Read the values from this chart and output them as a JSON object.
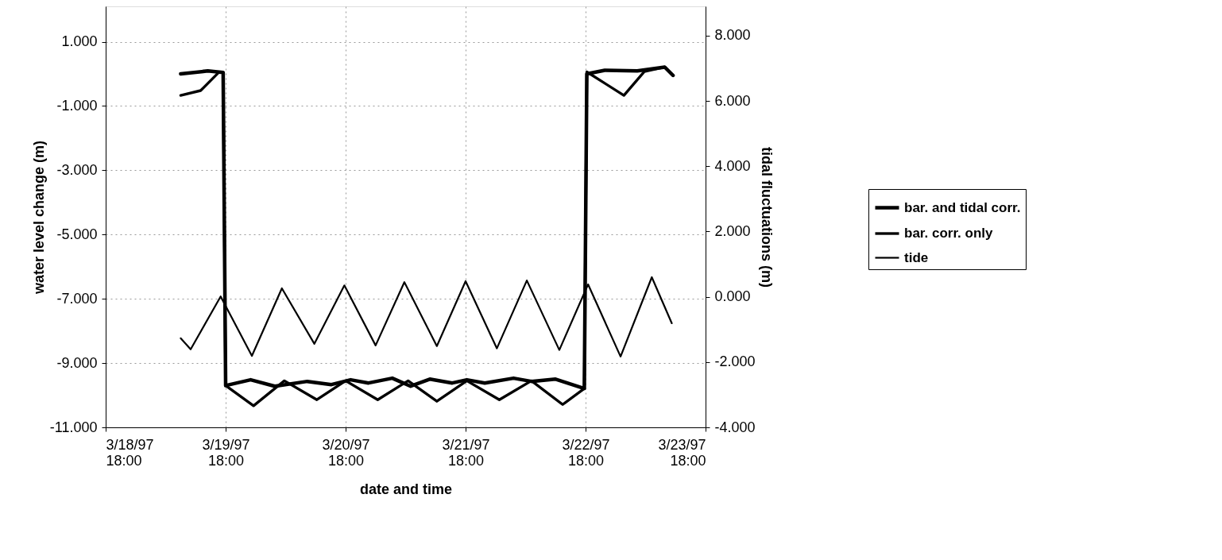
{
  "chart_data": {
    "type": "line",
    "xlabel": "date and time",
    "ylabel": "water level change (m)",
    "y2label": "tidal fluctuations (m)",
    "xlim": [
      "1997-03-18T18:00",
      "1997-03-23T18:00"
    ],
    "xticks": [
      {
        "value": "1997-03-18T18:00",
        "label": "3/18/97 18:00"
      },
      {
        "value": "1997-03-19T18:00",
        "label": "3/19/97 18:00"
      },
      {
        "value": "1997-03-20T18:00",
        "label": "3/20/97 18:00"
      },
      {
        "value": "1997-03-21T18:00",
        "label": "3/21/97 18:00"
      },
      {
        "value": "1997-03-22T18:00",
        "label": "3/22/97 18:00"
      },
      {
        "value": "1997-03-23T18:00",
        "label": "3/23/97 18:00"
      }
    ],
    "ylim": [
      -11,
      2.1
    ],
    "yticks": [
      {
        "value": -11,
        "label": "-11.000"
      },
      {
        "value": -9,
        "label": "-9.000"
      },
      {
        "value": -7,
        "label": "-7.000"
      },
      {
        "value": -5,
        "label": "-5.000"
      },
      {
        "value": -3,
        "label": "-3.000"
      },
      {
        "value": -1,
        "label": "-1.000"
      },
      {
        "value": 1,
        "label": "1.000"
      }
    ],
    "y2lim": [
      -4,
      8.9
    ],
    "y2ticks": [
      {
        "value": -4,
        "label": "-4.000"
      },
      {
        "value": -2,
        "label": "-2.000"
      },
      {
        "value": 0,
        "label": "0.000"
      },
      {
        "value": 2,
        "label": "2.000"
      },
      {
        "value": 4,
        "label": "4.000"
      },
      {
        "value": 6,
        "label": "6.000"
      },
      {
        "value": 8,
        "label": "8.000"
      }
    ],
    "grid": true,
    "legend": "right",
    "marker": "none",
    "line_style": "solid",
    "series": [
      {
        "name": "bar. and tidal corr.",
        "color": "#000000",
        "x": [
          "1997-03-19T09:00",
          "1997-03-19T14:25",
          "1997-03-19T17:30",
          "1997-03-19T18:00",
          "1997-03-19T23:00",
          "1997-03-20T03:50",
          "1997-03-20T10:20",
          "1997-03-20T15:10",
          "1997-03-20T19:00",
          "1997-03-20T22:35",
          "1997-03-21T03:20",
          "1997-03-21T07:00",
          "1997-03-21T10:50",
          "1997-03-21T15:20",
          "1997-03-21T18:15",
          "1997-03-21T21:50",
          "1997-03-22T03:35",
          "1997-03-22T07:10",
          "1997-03-22T12:00",
          "1997-03-22T17:45",
          "1997-03-22T18:15",
          "1997-03-22T21:50",
          "1997-03-23T04:20",
          "1997-03-23T09:50",
          "1997-03-23T11:30"
        ],
        "values": [
          0.0,
          0.09,
          0.04,
          -9.7,
          -9.52,
          -9.72,
          -9.57,
          -9.67,
          -9.52,
          -9.62,
          -9.47,
          -9.72,
          -9.5,
          -9.62,
          -9.52,
          -9.62,
          -9.47,
          -9.57,
          -9.5,
          -9.79,
          0.0,
          0.11,
          0.09,
          0.21,
          -0.05
        ]
      },
      {
        "name": "bar. corr. only",
        "color": "#000000",
        "x": [
          "1997-03-19T09:00",
          "1997-03-19T13:00",
          "1997-03-19T16:35",
          "1997-03-19T17:30",
          "1997-03-19T18:00",
          "1997-03-19T23:35",
          "1997-03-20T05:45",
          "1997-03-20T12:15",
          "1997-03-20T18:00",
          "1997-03-21T00:25",
          "1997-03-21T06:30",
          "1997-03-21T12:15",
          "1997-03-21T18:15",
          "1997-03-22T00:45",
          "1997-03-22T07:10",
          "1997-03-22T13:25",
          "1997-03-22T17:45",
          "1997-03-22T18:15",
          "1997-03-23T01:40",
          "1997-03-23T05:45",
          "1997-03-23T09:50",
          "1997-03-23T11:30"
        ],
        "values": [
          -0.67,
          -0.52,
          0.04,
          0.04,
          -9.7,
          -10.33,
          -9.55,
          -10.14,
          -9.55,
          -10.14,
          -9.55,
          -10.19,
          -9.55,
          -10.14,
          -9.55,
          -10.29,
          -9.79,
          0.06,
          -0.67,
          0.07,
          0.21,
          -0.05
        ]
      },
      {
        "name": "tide",
        "color": "#000000",
        "axis": "y2",
        "x": [
          "1997-03-19T09:00",
          "1997-03-19T11:00",
          "1997-03-19T17:00",
          "1997-03-19T23:15",
          "1997-03-20T05:15",
          "1997-03-20T11:45",
          "1997-03-20T17:45",
          "1997-03-21T00:00",
          "1997-03-21T05:45",
          "1997-03-21T12:15",
          "1997-03-21T18:00",
          "1997-03-22T00:15",
          "1997-03-22T06:15",
          "1997-03-22T12:45",
          "1997-03-22T18:30",
          "1997-03-23T01:00",
          "1997-03-23T07:15",
          "1997-03-23T11:15"
        ],
        "values": [
          -1.27,
          -1.61,
          0.01,
          -1.81,
          0.26,
          -1.44,
          0.35,
          -1.49,
          0.45,
          -1.51,
          0.48,
          -1.58,
          0.5,
          -1.63,
          0.38,
          -1.83,
          0.6,
          -0.81
        ]
      }
    ]
  }
}
